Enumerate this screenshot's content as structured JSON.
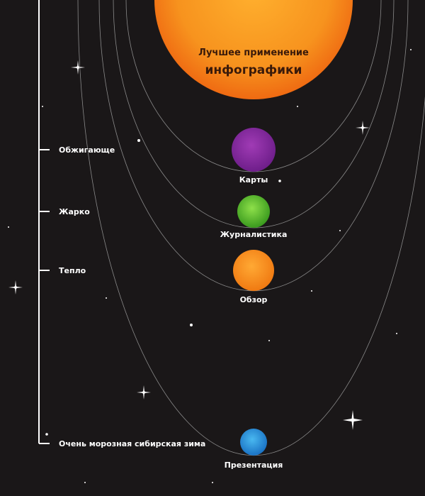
{
  "title": {
    "line1": "Лучшее применение",
    "line2": "инфографики"
  },
  "scale": {
    "labels": [
      "Обжигающе",
      "Жарко",
      "Тепло",
      "Очень морозная сибирская зима"
    ]
  },
  "planets": [
    {
      "label": "Карты"
    },
    {
      "label": "Журналистика"
    },
    {
      "label": "Обзор"
    },
    {
      "label": "Презентация"
    }
  ]
}
